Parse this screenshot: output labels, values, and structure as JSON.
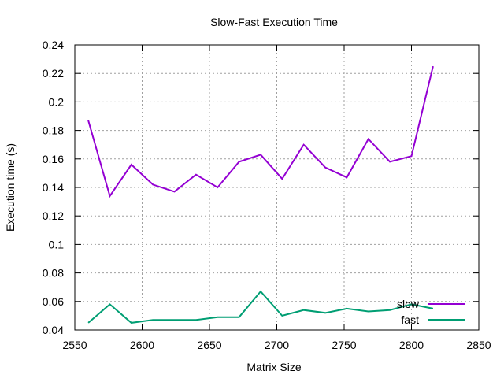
{
  "chart_data": {
    "type": "line",
    "title": "Slow-Fast Execution Time",
    "xlabel": "Matrix Size",
    "ylabel": "Execution time (s)",
    "xlim": [
      2550,
      2850
    ],
    "ylim": [
      0.04,
      0.24
    ],
    "xticks": [
      2550,
      2600,
      2650,
      2700,
      2750,
      2800,
      2850
    ],
    "yticks": [
      0.04,
      0.06,
      0.08,
      0.1,
      0.12,
      0.14,
      0.16,
      0.18,
      0.2,
      0.22,
      0.24
    ],
    "xtick_labels": [
      "2550",
      "2600",
      "2650",
      "2700",
      "2750",
      "2800",
      "2850"
    ],
    "ytick_labels": [
      "0.04",
      "0.06",
      "0.08",
      "0.1",
      "0.12",
      "0.14",
      "0.16",
      "0.18",
      "0.2",
      "0.22",
      "0.24"
    ],
    "grid": true,
    "legend_position": "bottom-right",
    "x": [
      2560,
      2576,
      2592,
      2608,
      2624,
      2640,
      2656,
      2672,
      2688,
      2704,
      2720,
      2736,
      2752,
      2768,
      2784,
      2800,
      2816
    ],
    "series": [
      {
        "name": "slow",
        "color": "#9400d3",
        "values": [
          0.187,
          0.134,
          0.156,
          0.142,
          0.137,
          0.149,
          0.14,
          0.158,
          0.163,
          0.146,
          0.17,
          0.154,
          0.147,
          0.174,
          0.158,
          0.162,
          0.225
        ]
      },
      {
        "name": "fast",
        "color": "#009e73",
        "values": [
          0.045,
          0.058,
          0.045,
          0.047,
          0.047,
          0.047,
          0.049,
          0.049,
          0.067,
          0.05,
          0.054,
          0.052,
          0.055,
          0.053,
          0.054,
          0.058,
          0.055
        ]
      }
    ]
  }
}
